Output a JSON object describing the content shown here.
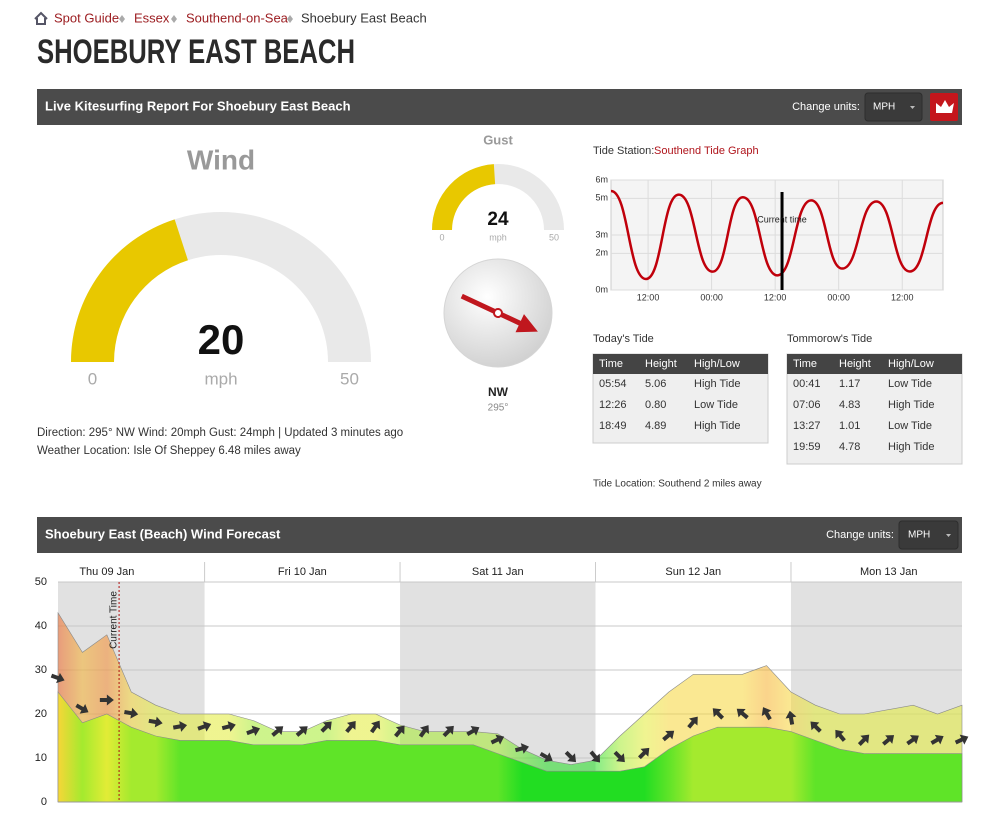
{
  "breadcrumb": [
    "Spot Guide",
    "Essex",
    "Southend-on-Sea",
    "Shoebury East Beach"
  ],
  "title": "SHOEBURY EAST BEACH",
  "live_report": {
    "header": "Live Kitesurfing Report For Shoebury East Beach",
    "change_units_label": "Change units:",
    "units": "MPH",
    "summary": "Direction: 295° NW  Wind: 20mph Gust: 24mph | Updated 3 minutes ago",
    "weather_location": "Weather Location: Isle Of Sheppey 6.48 miles away"
  },
  "tide": {
    "station_label": "Tide Station:",
    "station_link": "Southend Tide Graph",
    "today": {
      "title": "Today's Tide",
      "columns": [
        "Time",
        "Height",
        "High/Low"
      ],
      "rows": [
        [
          "05:54",
          "5.06",
          "High Tide"
        ],
        [
          "12:26",
          "0.80",
          "Low Tide"
        ],
        [
          "18:49",
          "4.89",
          "High Tide"
        ]
      ]
    },
    "tomorrow": {
      "title": "Tommorow's Tide",
      "columns": [
        "Time",
        "Height",
        "High/Low"
      ],
      "rows": [
        [
          "00:41",
          "1.17",
          "Low Tide"
        ],
        [
          "07:06",
          "4.83",
          "High Tide"
        ],
        [
          "13:27",
          "1.01",
          "Low Tide"
        ],
        [
          "19:59",
          "4.78",
          "High Tide"
        ]
      ]
    },
    "location": "Tide Location: Southend 2 miles away"
  },
  "forecast": {
    "header": "Shoebury East (Beach) Wind Forecast",
    "change_units_label": "Change units:",
    "units": "MPH"
  },
  "chart_data": [
    {
      "type": "gauge",
      "title": "Wind",
      "value": 20,
      "unit": "mph",
      "ylim": [
        0,
        50
      ],
      "yticks": [
        0,
        50
      ],
      "color": "#e8c800",
      "track_color": "#e9e9e9"
    },
    {
      "type": "gauge",
      "title": "Gust",
      "value": 24,
      "unit": "mph",
      "ylim": [
        0,
        50
      ],
      "yticks": [
        0,
        50
      ],
      "color": "#e8c800",
      "track_color": "#e9e9e9"
    },
    {
      "type": "compass",
      "label": "NW",
      "values": [
        295
      ],
      "value_labels": [
        "295°"
      ],
      "color": "#c0171e"
    },
    {
      "type": "line",
      "x": [
        5,
        11.6,
        17.8,
        24.2,
        29.9,
        36.43,
        42.82,
        48.68,
        55.1,
        61.45,
        67.7
      ],
      "series": [
        {
          "color": "#c0000b",
          "values": [
            5.4,
            0.6,
            5.2,
            1.0,
            5.06,
            0.8,
            4.89,
            1.17,
            4.83,
            1.01,
            4.75
          ]
        }
      ],
      "xlim": [
        5,
        67.7
      ],
      "xticks": [
        {
          "value": 12,
          "label": "12:00"
        },
        {
          "value": 24,
          "label": "00:00"
        },
        {
          "value": 36,
          "label": "12:00"
        },
        {
          "value": 48,
          "label": "00:00"
        },
        {
          "value": 60,
          "label": "12:00"
        }
      ],
      "ylim": [
        0,
        6
      ],
      "yticks": [
        {
          "value": 0,
          "label": "0m"
        },
        {
          "value": 2,
          "label": "2m"
        },
        {
          "value": 3,
          "label": "3m"
        },
        {
          "value": 5,
          "label": "5m"
        },
        {
          "value": 6,
          "label": "6m"
        }
      ],
      "grid": true,
      "annotations": [
        {
          "text": "Current time",
          "x": 37.3
        }
      ]
    },
    {
      "type": "area",
      "x": [
        6,
        9,
        12,
        15,
        18,
        21,
        24,
        27,
        30,
        33,
        36,
        39,
        42,
        45,
        48,
        51,
        54,
        57,
        60,
        63,
        66,
        69,
        72,
        75,
        78,
        81,
        84,
        87,
        90,
        93,
        96,
        99,
        102,
        105,
        108,
        111,
        114,
        117
      ],
      "series": [
        {
          "fill_opacity": 0.55,
          "values": [
            43,
            34,
            38,
            25,
            22,
            20,
            20,
            20,
            18.5,
            16,
            16,
            18.5,
            20,
            20,
            17.5,
            16,
            16,
            16,
            15.5,
            12,
            9.5,
            8.5,
            9.5,
            15,
            20,
            25,
            29,
            29,
            29,
            31,
            25,
            22,
            20,
            20,
            21,
            22,
            20,
            22
          ]
        },
        {
          "fill_opacity": 1,
          "values": [
            25,
            18,
            20,
            17,
            15,
            14,
            14,
            14,
            13,
            13,
            13,
            14,
            14,
            14,
            13,
            13,
            13,
            13,
            11,
            9,
            7,
            7,
            7,
            7,
            8,
            12,
            15,
            17,
            17,
            17,
            16,
            14,
            12,
            11,
            11,
            11,
            11,
            11
          ]
        }
      ],
      "directions": [
        290,
        300,
        270,
        280,
        280,
        260,
        250,
        255,
        250,
        230,
        230,
        225,
        220,
        215,
        220,
        215,
        225,
        240,
        245,
        255,
        300,
        315,
        320,
        315,
        225,
        230,
        220,
        135,
        130,
        150,
        170,
        135,
        140,
        225,
        230,
        235,
        240,
        245
      ],
      "arrow_color": "#333333",
      "color_scale": [
        {
          "min": 0,
          "color": "#22dd22"
        },
        {
          "min": 10,
          "color": "#5fe428"
        },
        {
          "min": 15,
          "color": "#a4ea2e"
        },
        {
          "min": 20,
          "color": "#e2ec36"
        },
        {
          "min": 25,
          "color": "#f6d638"
        },
        {
          "min": 30,
          "color": "#f5b02c"
        },
        {
          "min": 35,
          "color": "#f48a2e"
        },
        {
          "min": 40,
          "color": "#ee6428"
        }
      ],
      "xlim": [
        6,
        117
      ],
      "xticks": [
        {
          "value": 12,
          "label": "Thu 09 Jan"
        },
        {
          "value": 36,
          "label": "Fri 10 Jan"
        },
        {
          "value": 60,
          "label": "Sat 11 Jan"
        },
        {
          "value": 84,
          "label": "Sun 12 Jan"
        },
        {
          "value": 108,
          "label": "Mon 13 Jan"
        }
      ],
      "ylim": [
        0,
        50
      ],
      "yticks": [
        0,
        10,
        20,
        30,
        40,
        50
      ],
      "grid": true,
      "annotations": [
        {
          "text": "Current Time",
          "x": 13.5
        }
      ]
    }
  ]
}
